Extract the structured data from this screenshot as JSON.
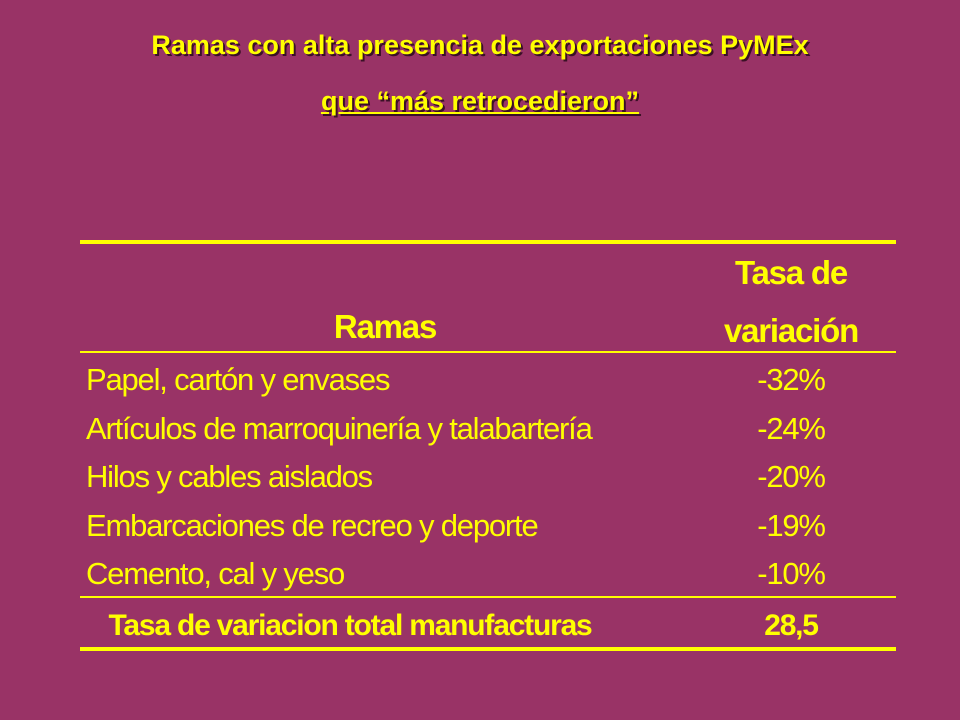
{
  "header": {
    "title": "Ramas con alta presencia de exportaciones PyMEx",
    "subtitle": "que “más retrocedieron”"
  },
  "table": {
    "columns": [
      "Ramas",
      "Tasa de variación"
    ],
    "rows": [
      [
        "Papel, cartón  y envases",
        "-32%"
      ],
      [
        "Artículos de marroquinería y talabartería",
        "-24%"
      ],
      [
        "Hilos y cables aislados",
        "-20%"
      ],
      [
        "Embarcaciones de recreo y deporte",
        "-19%"
      ],
      [
        "Cemento, cal y yeso",
        "-10%"
      ]
    ],
    "total": [
      "Tasa de variacion total manufacturas",
      "28,5"
    ]
  }
}
